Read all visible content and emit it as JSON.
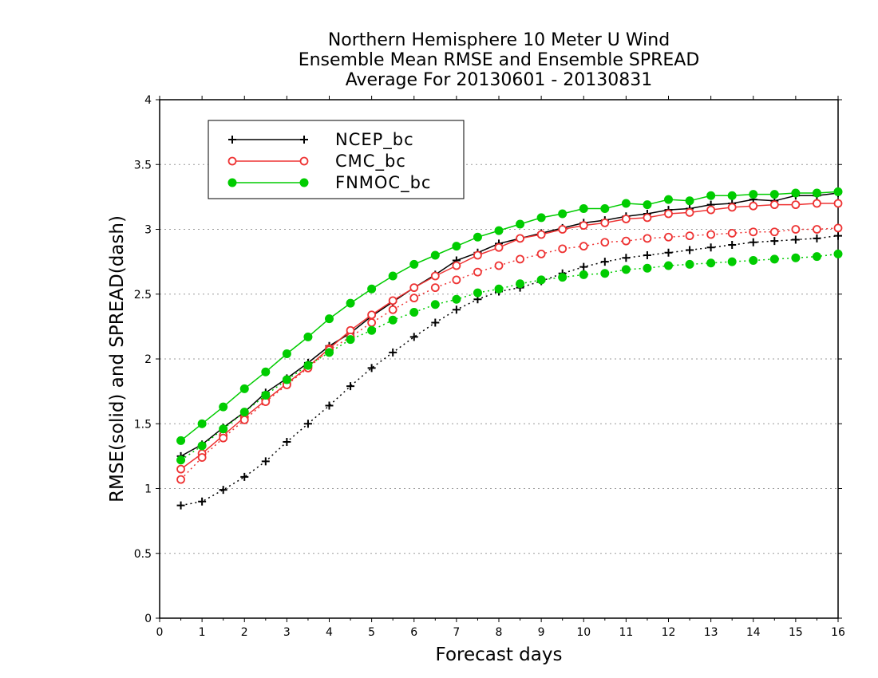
{
  "chart_data": {
    "type": "line",
    "title": [
      "Northern Hemisphere 10 Meter U Wind",
      "Ensemble Mean RMSE and Ensemble SPREAD",
      "Average For 20130601 - 20130831"
    ],
    "xlabel": "Forecast days",
    "ylabel": "RMSE(solid) and SPREAD(dash)",
    "xlim": [
      0,
      16
    ],
    "ylim": [
      0,
      4
    ],
    "xticks": [
      "0",
      "1",
      "2",
      "3",
      "4",
      "5",
      "6",
      "7",
      "8",
      "9",
      "10",
      "11",
      "12",
      "13",
      "14",
      "15",
      "16"
    ],
    "yticks": [
      "0",
      "0.5",
      "1",
      "1.5",
      "2",
      "2.5",
      "3",
      "3.5",
      "4"
    ],
    "grid": "horizontal dotted",
    "legend_position": "top-left",
    "x": [
      0.5,
      1,
      1.5,
      2,
      2.5,
      3,
      3.5,
      4,
      4.5,
      5,
      5.5,
      6,
      6.5,
      7,
      7.5,
      8,
      8.5,
      9,
      9.5,
      10,
      10.5,
      11,
      11.5,
      12,
      12.5,
      13,
      13.5,
      14,
      14.5,
      15,
      15.5,
      16
    ],
    "series": [
      {
        "name": "NCEP_bc",
        "color": "#000000",
        "marker": "plus",
        "rmse": [
          1.25,
          1.34,
          1.47,
          1.59,
          1.74,
          1.85,
          1.97,
          2.1,
          2.2,
          2.33,
          2.44,
          2.55,
          2.65,
          2.76,
          2.82,
          2.89,
          2.93,
          2.97,
          3.01,
          3.05,
          3.07,
          3.1,
          3.12,
          3.15,
          3.16,
          3.19,
          3.2,
          3.23,
          3.22,
          3.26,
          3.26,
          3.28
        ],
        "spread": [
          0.87,
          0.9,
          0.99,
          1.09,
          1.21,
          1.36,
          1.5,
          1.64,
          1.79,
          1.93,
          2.05,
          2.17,
          2.28,
          2.38,
          2.46,
          2.52,
          2.55,
          2.6,
          2.66,
          2.71,
          2.75,
          2.78,
          2.8,
          2.82,
          2.84,
          2.86,
          2.88,
          2.9,
          2.91,
          2.92,
          2.93,
          2.95
        ]
      },
      {
        "name": "CMC_bc",
        "color": "#ee3333",
        "marker": "open-circle",
        "rmse": [
          1.15,
          1.27,
          1.41,
          1.55,
          1.68,
          1.81,
          1.94,
          2.08,
          2.22,
          2.34,
          2.45,
          2.55,
          2.64,
          2.72,
          2.8,
          2.86,
          2.93,
          2.96,
          3.0,
          3.03,
          3.05,
          3.08,
          3.09,
          3.12,
          3.13,
          3.15,
          3.17,
          3.18,
          3.19,
          3.19,
          3.2,
          3.2
        ],
        "spread": [
          1.07,
          1.24,
          1.39,
          1.53,
          1.67,
          1.8,
          1.93,
          2.07,
          2.17,
          2.28,
          2.38,
          2.47,
          2.55,
          2.61,
          2.67,
          2.72,
          2.77,
          2.81,
          2.85,
          2.87,
          2.9,
          2.91,
          2.93,
          2.94,
          2.95,
          2.96,
          2.97,
          2.98,
          2.98,
          3.0,
          3.0,
          3.01
        ]
      },
      {
        "name": "FNMOC_bc",
        "color": "#00cc00",
        "marker": "filled-circle",
        "rmse": [
          1.37,
          1.5,
          1.63,
          1.77,
          1.9,
          2.04,
          2.17,
          2.31,
          2.43,
          2.54,
          2.64,
          2.73,
          2.8,
          2.87,
          2.94,
          2.99,
          3.04,
          3.09,
          3.12,
          3.16,
          3.16,
          3.2,
          3.19,
          3.23,
          3.22,
          3.26,
          3.26,
          3.27,
          3.27,
          3.28,
          3.28,
          3.29
        ],
        "spread": [
          1.22,
          1.33,
          1.46,
          1.59,
          1.72,
          1.84,
          1.95,
          2.05,
          2.15,
          2.22,
          2.3,
          2.36,
          2.42,
          2.46,
          2.51,
          2.54,
          2.58,
          2.61,
          2.63,
          2.65,
          2.66,
          2.69,
          2.7,
          2.72,
          2.73,
          2.74,
          2.75,
          2.76,
          2.77,
          2.78,
          2.79,
          2.81
        ]
      }
    ]
  }
}
